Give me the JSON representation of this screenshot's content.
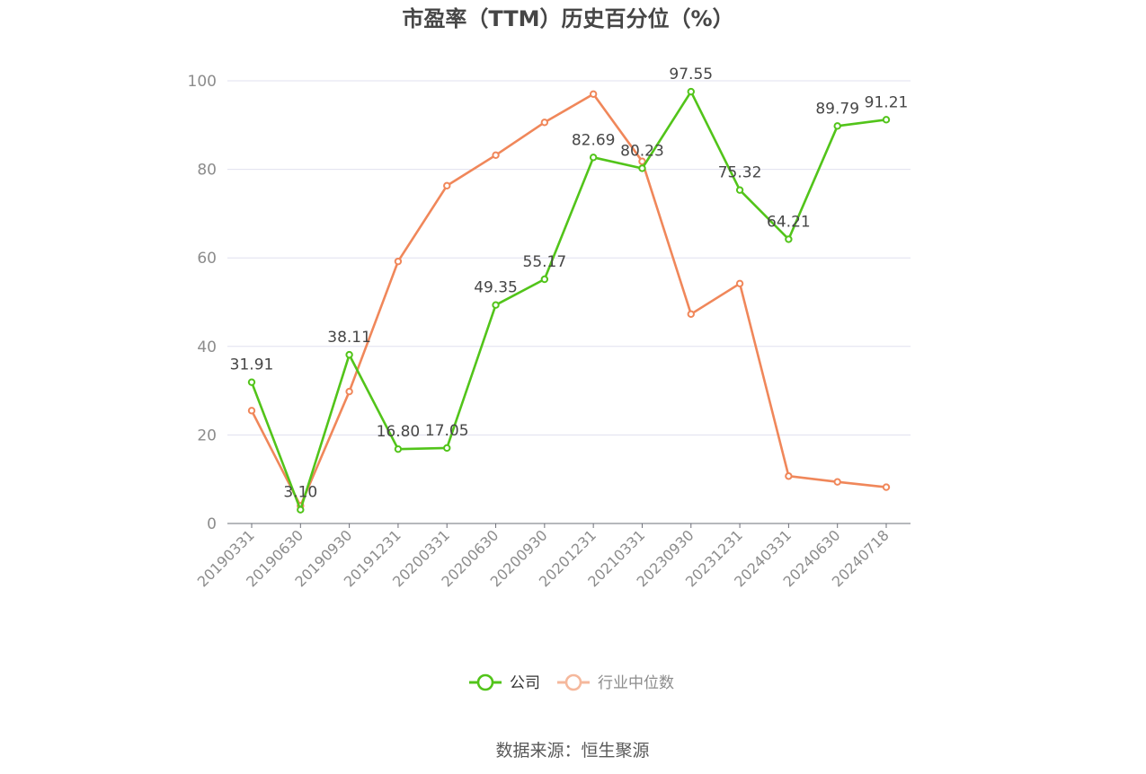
{
  "chart_data": {
    "type": "line",
    "title": "市盈率（TTM）历史百分位（%）",
    "categories": [
      "20190331",
      "20190630",
      "20190930",
      "20191231",
      "20200331",
      "20200630",
      "20200930",
      "20201231",
      "20210331",
      "20230930",
      "20231231",
      "20240331",
      "20240630",
      "20240718"
    ],
    "series": [
      {
        "name": "公司",
        "color": "#52c41a",
        "show_labels": true,
        "values": [
          31.91,
          3.1,
          38.11,
          16.8,
          17.05,
          49.35,
          55.17,
          82.69,
          80.23,
          97.55,
          75.32,
          64.21,
          89.79,
          91.21
        ]
      },
      {
        "name": "行业中位数",
        "color": "#f0875a",
        "show_labels": false,
        "values": [
          25.5,
          4.0,
          29.8,
          59.2,
          76.3,
          83.2,
          90.6,
          97.0,
          81.8,
          47.3,
          54.2,
          10.7,
          9.4,
          8.2
        ]
      }
    ],
    "ylim": [
      0,
      100
    ],
    "yticks": [
      0,
      20,
      40,
      60,
      80,
      100
    ],
    "grid": true,
    "legend_position": "bottom-center",
    "source": "数据来源：恒生聚源"
  }
}
